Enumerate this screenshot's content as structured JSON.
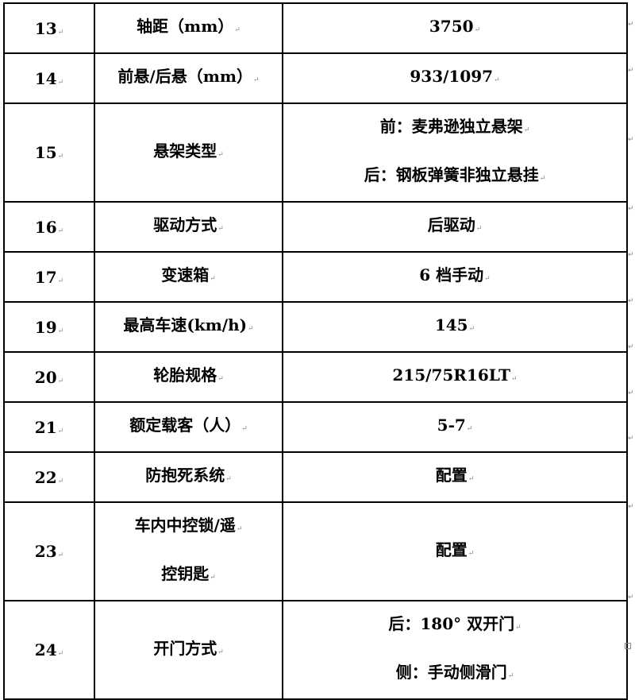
{
  "rows": [
    {
      "no": "13",
      "item": [
        "轴距（mm）"
      ],
      "value": [
        "3750"
      ]
    },
    {
      "no": "14",
      "item": [
        "前悬/后悬（mm）"
      ],
      "value": [
        "933/1097"
      ]
    },
    {
      "no": "15",
      "item": [
        "悬架类型"
      ],
      "value": [
        "前：麦弗逊独立悬架",
        "后：钢板弹簧非独立悬挂"
      ]
    },
    {
      "no": "16",
      "item": [
        "驱动方式"
      ],
      "value": [
        "后驱动"
      ]
    },
    {
      "no": "17",
      "item": [
        "变速箱"
      ],
      "value": [
        "6 档手动"
      ]
    },
    {
      "no": "19",
      "item": [
        "最高车速(km/h)"
      ],
      "value": [
        "145"
      ]
    },
    {
      "no": "20",
      "item": [
        "轮胎规格"
      ],
      "value": [
        "215/75R16LT"
      ]
    },
    {
      "no": "21",
      "item": [
        "额定载客（人）"
      ],
      "value": [
        "5-7"
      ]
    },
    {
      "no": "22",
      "item": [
        "防抱死系统"
      ],
      "value": [
        "配置"
      ]
    },
    {
      "no": "23",
      "item": [
        "车内中控锁/遥",
        "控钥匙"
      ],
      "value": [
        "配置"
      ]
    },
    {
      "no": "24",
      "item": [
        "开门方式"
      ],
      "value": [
        "后：180° 双开门",
        "侧：手动侧滑门"
      ]
    }
  ]
}
